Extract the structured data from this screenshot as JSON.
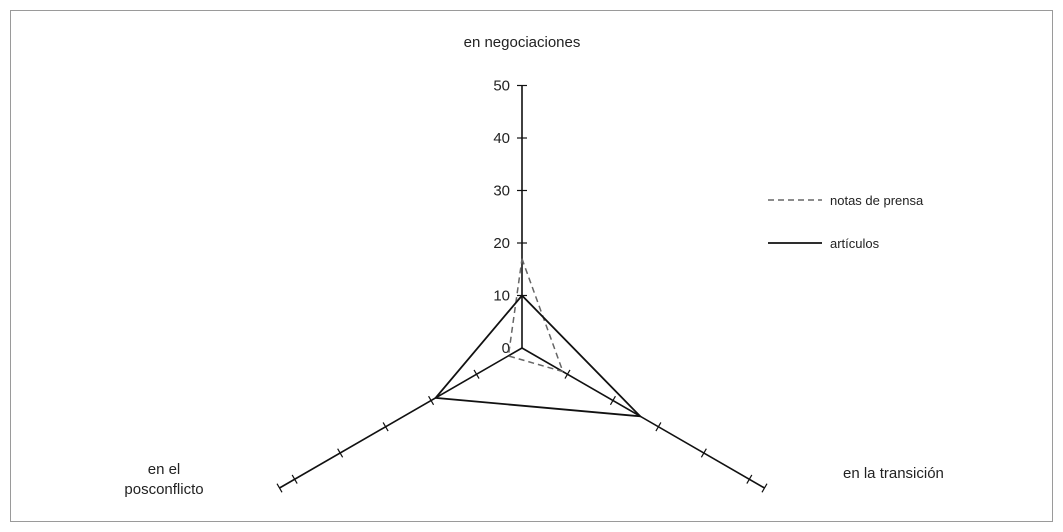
{
  "chart_data": {
    "type": "radar",
    "axes": [
      {
        "label_lines": [
          "en negociaciones"
        ]
      },
      {
        "label_lines": [
          "en la transición"
        ]
      },
      {
        "label_lines": [
          "en el",
          "posconflicto"
        ]
      }
    ],
    "r_ticks": [
      "0",
      "10",
      "20",
      "30",
      "40",
      "50"
    ],
    "rlim": [
      0,
      50
    ],
    "series": [
      {
        "name": "notas de prensa",
        "values": [
          17,
          9,
          3
        ],
        "color": "#666666",
        "style": "dashed"
      },
      {
        "name": "artículos",
        "values": [
          10,
          26,
          19
        ],
        "color": "#111111",
        "style": "solid"
      }
    ],
    "legend_position": "right",
    "grid": false
  }
}
